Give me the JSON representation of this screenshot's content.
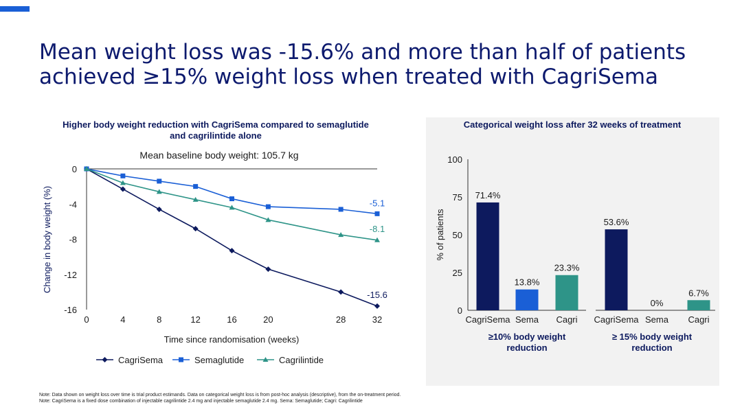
{
  "title": {
    "line1": "Mean weight loss was -15.6% and more than half of patients",
    "line2": "achieved ≥15% weight loss when treated with CagriSema"
  },
  "colors": {
    "accent": "#1a5fd6",
    "title": "#0d1a6e",
    "cagrisema": "#0d1a5e",
    "semaglutide": "#1a5fd6",
    "cagrilintide": "#2e9488",
    "panel_bg": "#f2f2f2"
  },
  "chart_data": [
    {
      "type": "line",
      "title": "Higher body weight reduction with CagriSema compared to semaglutide and cagrilintide alone",
      "title_lines": [
        "Higher body weight reduction with CagriSema compared to semaglutide",
        "and cagrilintide alone"
      ],
      "subtitle": "Mean baseline body weight: 105.7 kg",
      "xlabel": "Time since randomisation (weeks)",
      "ylabel": "Change in body weight (%)",
      "x": [
        0,
        4,
        8,
        12,
        16,
        20,
        28,
        32
      ],
      "xticks": [
        "0",
        "4",
        "8",
        "12",
        "16",
        "20",
        "28",
        "32"
      ],
      "yticks": [
        "0",
        "-4",
        "-8",
        "-12",
        "-16"
      ],
      "xlim": [
        0,
        32
      ],
      "ylim": [
        -16,
        0
      ],
      "legend_position": "bottom",
      "series": [
        {
          "name": "CagriSema",
          "color": "#0d1a5e",
          "marker": "diamond",
          "values": [
            0,
            -2.3,
            -4.6,
            -6.8,
            -9.3,
            -11.4,
            -14.0,
            -15.6
          ],
          "end_label": "-15.6"
        },
        {
          "name": "Semaglutide",
          "color": "#1a5fd6",
          "marker": "square",
          "values": [
            0,
            -0.8,
            -1.4,
            -2.0,
            -3.4,
            -4.3,
            -4.6,
            -5.1
          ],
          "end_label": "-5.1"
        },
        {
          "name": "Cagrilintide",
          "color": "#2e9488",
          "marker": "triangle",
          "values": [
            0,
            -1.6,
            -2.6,
            -3.5,
            -4.4,
            -5.8,
            -7.5,
            -8.1
          ],
          "end_label": "-8.1"
        }
      ]
    },
    {
      "type": "bar",
      "title": "Categorical weight loss after 32 weeks of treatment",
      "ylabel": "% of patients",
      "ylim": [
        0,
        100
      ],
      "yticks": [
        "0",
        "25",
        "50",
        "75",
        "100"
      ],
      "groups": [
        {
          "label": "≥10% body weight reduction",
          "label_lines": [
            "≥10% body weight",
            "reduction"
          ],
          "bars": [
            {
              "category": "CagriSema",
              "value": 71.4,
              "label": "71.4%",
              "color": "#0d1a5e"
            },
            {
              "category": "Sema",
              "value": 13.8,
              "label": "13.8%",
              "color": "#1a5fd6"
            },
            {
              "category": "Cagri",
              "value": 23.3,
              "label": "23.3%",
              "color": "#2e9488"
            }
          ]
        },
        {
          "label": "≥ 15% body weight reduction",
          "label_lines": [
            "≥ 15% body weight",
            "reduction"
          ],
          "bars": [
            {
              "category": "CagriSema",
              "value": 53.6,
              "label": "53.6%",
              "color": "#0d1a5e"
            },
            {
              "category": "Sema",
              "value": 0,
              "label": "0%",
              "color": "#1a5fd6"
            },
            {
              "category": "Cagri",
              "value": 6.7,
              "label": "6.7%",
              "color": "#2e9488"
            }
          ]
        }
      ]
    }
  ],
  "notes": {
    "line1": "Note: Data shown on weight loss over time is trial product estimands. Data on categorical weight loss is from post-hoc analysis (descriptive), from the on-treatment period.",
    "line2": "Note: CagriSema is a fixed dose combination of injectable cagrilintide 2.4 mg and injectable semaglutide 2.4 mg. Sema: Semaglutide; Cagri: Cagrilintide"
  }
}
